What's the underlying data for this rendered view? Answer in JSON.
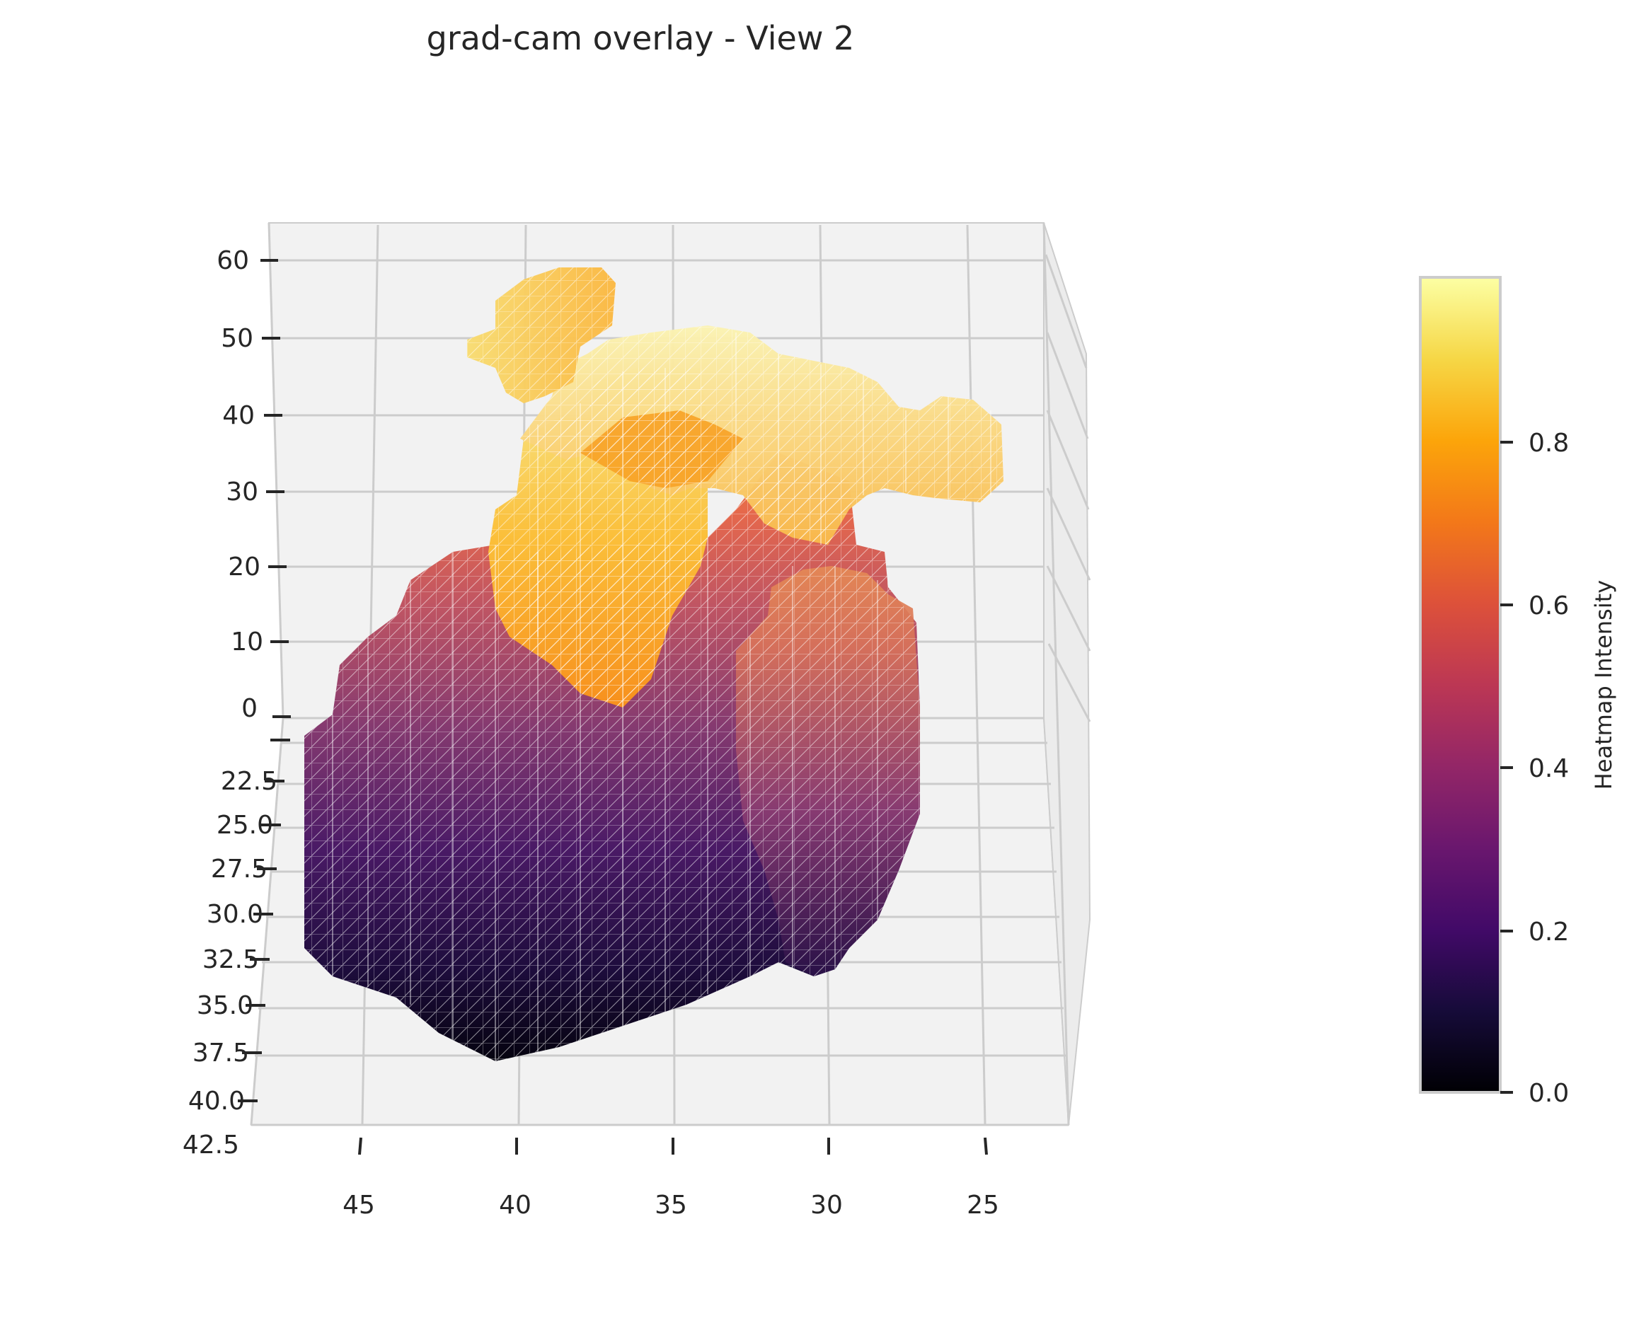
{
  "chart_data": {
    "type": "surface3d",
    "title": "grad-cam overlay - View 2",
    "xlabel": "",
    "ylabel": "",
    "zlabel": "",
    "x_ticks": [
      "45",
      "40",
      "35",
      "30",
      "25"
    ],
    "y_ticks": [
      "22.5",
      "25.0",
      "27.5",
      "30.0",
      "32.5",
      "35.0",
      "37.5",
      "40.0",
      "42.5"
    ],
    "z_ticks": [
      "60",
      "50",
      "40",
      "30",
      "20",
      "10",
      "0"
    ],
    "colorbar": {
      "label": "Heatmap Intensity",
      "colormap": "inferno",
      "range": [
        0.0,
        0.98
      ],
      "ticks": [
        "0.0",
        "0.2",
        "0.4",
        "0.6",
        "0.8"
      ]
    },
    "grid": true,
    "pane_color": "#f2f2f2",
    "gridline_color": "#cccccc",
    "wireframe_color": "#ffffff",
    "intensity_regions": [
      {
        "region": "base-bottom",
        "intensity": 0.05
      },
      {
        "region": "base-lower",
        "intensity": 0.3
      },
      {
        "region": "base-middle",
        "intensity": 0.45
      },
      {
        "region": "base-upper",
        "intensity": 0.6
      },
      {
        "region": "column-left",
        "intensity": 0.85
      },
      {
        "region": "column-right",
        "intensity": 0.72
      },
      {
        "region": "top-arch",
        "intensity": 0.93
      },
      {
        "region": "top-tip",
        "intensity": 0.97
      }
    ]
  }
}
